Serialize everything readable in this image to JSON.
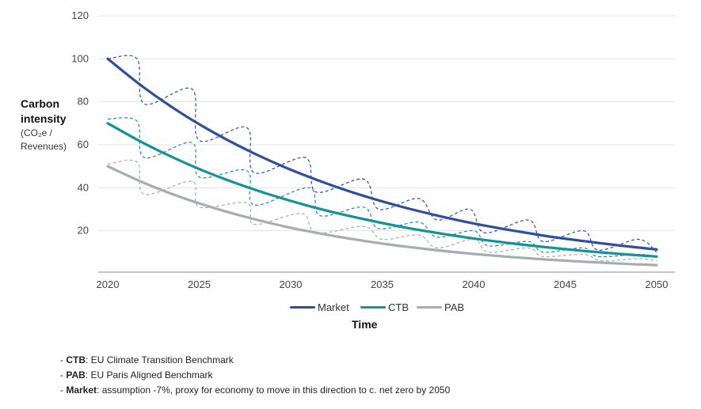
{
  "chart_data": {
    "type": "line",
    "xlabel": "Time",
    "ylabel_main": "Carbon intensity",
    "ylabel_sub_lines": [
      "(CO₂e /",
      "Revenues)"
    ],
    "ylim": [
      0,
      120
    ],
    "xlim": [
      2020,
      2050
    ],
    "yticks": [
      20,
      40,
      60,
      80,
      100,
      120
    ],
    "xticks": [
      2020,
      2025,
      2030,
      2035,
      2040,
      2045,
      2050
    ],
    "grid": "horizontal",
    "legend_position": "bottom",
    "x": [
      2020,
      2022,
      2024,
      2026,
      2028,
      2030,
      2032,
      2034,
      2036,
      2038,
      2040,
      2042,
      2044,
      2046,
      2048,
      2050
    ],
    "series": [
      {
        "name": "Market",
        "color": "#2e4fa0",
        "values": [
          100,
          86.5,
          74.8,
          64.7,
          56.0,
          48.4,
          41.9,
          36.2,
          31.3,
          27.1,
          23.4,
          20.3,
          17.5,
          15.2,
          13.1,
          11.3
        ]
      },
      {
        "name": "CTB",
        "color": "#12939a",
        "values": [
          70,
          60.6,
          52.4,
          45.3,
          39.2,
          33.9,
          29.3,
          25.4,
          21.9,
          19.0,
          16.4,
          14.2,
          12.3,
          10.6,
          9.2,
          8.0
        ]
      },
      {
        "name": "PAB",
        "color": "#a3aeb0",
        "values": [
          50,
          42.2,
          35.6,
          30.1,
          25.4,
          21.4,
          18.1,
          15.3,
          12.9,
          10.9,
          9.2,
          7.8,
          6.6,
          5.6,
          4.7,
          4.0
        ]
      }
    ],
    "dashed_paths": [
      {
        "series": "Market",
        "points": [
          [
            2020,
            100
          ],
          [
            2021.6,
            100
          ],
          [
            2022,
            79
          ],
          [
            2024.6,
            86
          ],
          [
            2025,
            62
          ],
          [
            2027.6,
            68
          ],
          [
            2028,
            47
          ],
          [
            2030.8,
            54
          ],
          [
            2031.4,
            38
          ],
          [
            2034,
            44
          ],
          [
            2034.8,
            30
          ],
          [
            2037,
            35
          ],
          [
            2038,
            25
          ],
          [
            2039.8,
            30
          ],
          [
            2040.6,
            19
          ],
          [
            2043,
            25
          ],
          [
            2043.8,
            15
          ],
          [
            2046,
            20
          ],
          [
            2046.8,
            11
          ],
          [
            2049,
            16
          ],
          [
            2050,
            10
          ]
        ]
      },
      {
        "series": "CTB",
        "points": [
          [
            2020,
            72
          ],
          [
            2021.6,
            71
          ],
          [
            2022,
            54
          ],
          [
            2024.6,
            61
          ],
          [
            2025,
            45
          ],
          [
            2027.6,
            48
          ],
          [
            2028,
            32
          ],
          [
            2031,
            40
          ],
          [
            2031.6,
            27
          ],
          [
            2034,
            31
          ],
          [
            2034.8,
            21
          ],
          [
            2037,
            24
          ],
          [
            2038,
            17
          ],
          [
            2040,
            20
          ],
          [
            2040.8,
            13
          ],
          [
            2043,
            15
          ],
          [
            2043.8,
            10
          ],
          [
            2046,
            12
          ],
          [
            2046.8,
            8
          ],
          [
            2049,
            9
          ],
          [
            2050,
            8
          ]
        ]
      },
      {
        "series": "PAB",
        "points": [
          [
            2020,
            51
          ],
          [
            2021.6,
            52
          ],
          [
            2022,
            37
          ],
          [
            2024.6,
            43
          ],
          [
            2025,
            31
          ],
          [
            2027.6,
            33
          ],
          [
            2028,
            23
          ],
          [
            2030.6,
            28
          ],
          [
            2031.4,
            19
          ],
          [
            2034,
            22
          ],
          [
            2035,
            16
          ],
          [
            2037,
            18
          ],
          [
            2038,
            12
          ],
          [
            2040,
            16
          ],
          [
            2040.8,
            10
          ],
          [
            2043,
            12
          ],
          [
            2043.8,
            8
          ],
          [
            2046,
            9
          ],
          [
            2047,
            6
          ],
          [
            2049,
            7
          ],
          [
            2050,
            6
          ]
        ]
      }
    ]
  },
  "legend": [
    {
      "label": "Market",
      "color": "#2e4fa0"
    },
    {
      "label": "CTB",
      "color": "#12939a"
    },
    {
      "label": "PAB",
      "color": "#a3aeb0"
    }
  ],
  "notes": [
    {
      "term": "CTB",
      "text": ": EU Climate Transition Benchmark"
    },
    {
      "term": "PAB",
      "text": ": EU Paris Aligned Benchmark"
    },
    {
      "term": "Market",
      "text": ": assumption -7%, proxy for economy to move in this direction to c. net zero by 2050"
    }
  ]
}
